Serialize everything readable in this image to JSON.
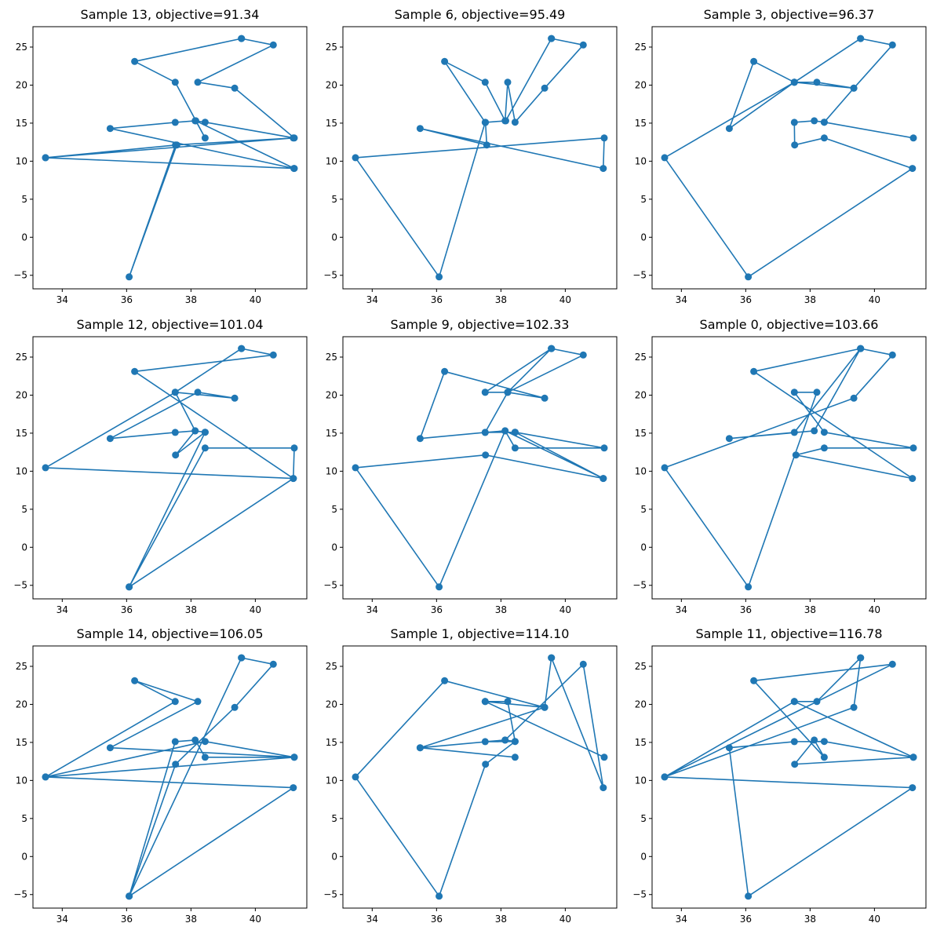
{
  "chart_data": [
    {
      "type": "line",
      "title": "Sample 13, objective=91.34",
      "x": [
        39.57,
        40.56,
        38.21,
        39.36,
        41.21,
        38.44,
        38.13,
        37.51,
        35.49,
        41.2,
        33.48,
        41.18,
        37.52,
        36.08,
        37.56,
        33.48,
        41.21,
        38.15,
        38.44,
        37.51,
        36.25,
        39.57
      ],
      "y": [
        26.12,
        25.28,
        20.38,
        19.6,
        13.05,
        15.12,
        15.31,
        15.1,
        14.3,
        9.05,
        10.46,
        13.05,
        12.13,
        -5.21,
        12.13,
        10.46,
        9.05,
        15.31,
        13.05,
        20.38,
        23.11,
        26.12
      ],
      "xticks": [
        34,
        36,
        38,
        40
      ],
      "yticks": [
        -5,
        0,
        5,
        10,
        15,
        20,
        25
      ],
      "xlim": [
        33.09,
        41.6
      ],
      "ylim": [
        -6.78,
        27.68
      ]
    },
    {
      "type": "line",
      "title": "Sample 6, objective=95.49",
      "x": [
        39.57,
        40.56,
        39.36,
        38.44,
        38.21,
        38.13,
        37.51,
        36.25,
        37.51,
        36.08,
        33.48,
        41.21,
        41.18,
        35.49,
        37.56,
        37.52,
        38.15,
        39.57
      ],
      "y": [
        26.12,
        25.28,
        19.6,
        15.12,
        20.38,
        15.31,
        20.38,
        23.11,
        15.1,
        -5.21,
        10.46,
        13.05,
        9.05,
        14.3,
        12.13,
        15.1,
        15.31,
        26.12
      ],
      "xticks": [
        34,
        36,
        38,
        40
      ],
      "yticks": [
        -5,
        0,
        5,
        10,
        15,
        20,
        25
      ],
      "xlim": [
        33.09,
        41.6
      ],
      "ylim": [
        -6.78,
        27.68
      ]
    },
    {
      "type": "line",
      "title": "Sample 3, objective=96.37",
      "x": [
        39.57,
        40.56,
        39.36,
        38.21,
        37.51,
        33.48,
        36.08,
        41.18,
        38.44,
        37.52,
        37.51,
        38.13,
        38.44,
        41.21,
        38.44,
        39.36,
        37.51,
        36.25,
        35.49,
        37.51,
        39.57
      ],
      "y": [
        26.12,
        25.28,
        19.6,
        20.38,
        20.38,
        10.46,
        -5.21,
        9.05,
        13.05,
        12.13,
        15.1,
        15.31,
        15.12,
        13.05,
        15.12,
        19.6,
        20.38,
        23.11,
        14.3,
        20.38,
        26.12
      ],
      "xticks": [
        34,
        36,
        38,
        40
      ],
      "yticks": [
        -5,
        0,
        5,
        10,
        15,
        20,
        25
      ],
      "xlim": [
        33.09,
        41.6
      ],
      "ylim": [
        -6.78,
        27.68
      ]
    },
    {
      "type": "line",
      "title": "Sample 12, objective=101.04",
      "x": [
        39.57,
        40.56,
        36.25,
        41.18,
        36.08,
        38.44,
        37.52,
        38.13,
        37.51,
        35.49,
        38.21,
        39.36,
        37.51,
        33.48,
        41.18,
        41.21,
        38.44,
        36.08,
        38.44,
        38.13,
        37.51,
        39.57
      ],
      "y": [
        26.12,
        25.28,
        23.11,
        9.05,
        -5.21,
        15.12,
        12.13,
        15.31,
        15.1,
        14.3,
        20.38,
        19.6,
        20.38,
        10.46,
        9.05,
        13.05,
        13.05,
        -5.21,
        15.12,
        15.31,
        20.38,
        26.12
      ],
      "xticks": [
        34,
        36,
        38,
        40
      ],
      "yticks": [
        -5,
        0,
        5,
        10,
        15,
        20,
        25
      ],
      "xlim": [
        33.09,
        41.6
      ],
      "ylim": [
        -6.78,
        27.68
      ]
    },
    {
      "type": "line",
      "title": "Sample 9, objective=102.33",
      "x": [
        39.57,
        38.21,
        37.51,
        39.57,
        37.51,
        38.21,
        39.36,
        36.25,
        35.49,
        37.51,
        38.13,
        41.18,
        38.44,
        41.21,
        38.44,
        38.13,
        36.08,
        33.48,
        37.52,
        41.18,
        38.44,
        37.51,
        38.21,
        40.56,
        39.57
      ],
      "y": [
        26.12,
        20.38,
        20.38,
        26.12,
        20.38,
        20.38,
        19.6,
        23.11,
        14.3,
        15.1,
        15.31,
        9.05,
        15.12,
        13.05,
        13.05,
        15.31,
        -5.21,
        10.46,
        12.13,
        9.05,
        15.12,
        15.1,
        20.38,
        25.28,
        26.12
      ],
      "xticks": [
        34,
        36,
        38,
        40
      ],
      "yticks": [
        -5,
        0,
        5,
        10,
        15,
        20,
        25
      ],
      "xlim": [
        33.09,
        41.6
      ],
      "ylim": [
        -6.78,
        27.68
      ]
    },
    {
      "type": "line",
      "title": "Sample 0, objective=103.66",
      "x": [
        39.57,
        40.56,
        39.36,
        33.48,
        36.08,
        38.21,
        37.51,
        38.44,
        41.21,
        38.44,
        37.56,
        41.18,
        36.25,
        39.57,
        38.13,
        35.49,
        37.51,
        39.57
      ],
      "y": [
        26.12,
        25.28,
        19.6,
        10.46,
        -5.21,
        20.38,
        20.38,
        15.12,
        13.05,
        13.05,
        12.13,
        9.05,
        23.11,
        26.12,
        15.31,
        14.3,
        15.1,
        26.12
      ],
      "xticks": [
        34,
        36,
        38,
        40
      ],
      "yticks": [
        -5,
        0,
        5,
        10,
        15,
        20,
        25
      ],
      "xlim": [
        33.09,
        41.6
      ],
      "ylim": [
        -6.78,
        27.68
      ]
    },
    {
      "type": "line",
      "title": "Sample 14, objective=106.05",
      "x": [
        39.57,
        40.56,
        39.36,
        37.52,
        36.08,
        41.18,
        33.48,
        41.21,
        35.49,
        38.21,
        36.25,
        37.51,
        33.48,
        38.44,
        41.21,
        38.44,
        38.13,
        37.51,
        36.08,
        39.57
      ],
      "y": [
        26.12,
        25.28,
        19.6,
        12.13,
        -5.21,
        9.05,
        10.46,
        13.05,
        14.3,
        20.38,
        23.11,
        20.38,
        10.46,
        15.12,
        13.05,
        13.05,
        15.31,
        15.1,
        -5.21,
        26.12
      ],
      "xticks": [
        34,
        36,
        38,
        40
      ],
      "yticks": [
        -5,
        0,
        5,
        10,
        15,
        20,
        25
      ],
      "xlim": [
        33.09,
        41.6
      ],
      "ylim": [
        -6.78,
        27.68
      ]
    },
    {
      "type": "line",
      "title": "Sample 1, objective=114.10",
      "x": [
        39.57,
        41.18,
        40.56,
        38.13,
        37.51,
        38.44,
        38.21,
        37.51,
        41.21,
        37.51,
        39.36,
        36.25,
        33.48,
        36.08,
        37.52,
        38.44,
        38.13,
        35.49,
        38.44,
        35.49,
        39.36,
        39.57
      ],
      "y": [
        26.12,
        9.05,
        25.28,
        15.31,
        15.1,
        15.12,
        20.38,
        20.38,
        13.05,
        20.38,
        19.6,
        23.11,
        10.46,
        -5.21,
        12.13,
        15.12,
        15.31,
        14.3,
        13.05,
        14.3,
        19.6,
        26.12
      ],
      "xticks": [
        34,
        36,
        38,
        40
      ],
      "yticks": [
        -5,
        0,
        5,
        10,
        15,
        20,
        25
      ],
      "xlim": [
        33.09,
        41.6
      ],
      "ylim": [
        -6.78,
        27.68
      ]
    },
    {
      "type": "line",
      "title": "Sample 11, objective=116.78",
      "x": [
        39.57,
        39.36,
        33.48,
        40.56,
        36.25,
        38.44,
        38.13,
        37.52,
        41.21,
        37.51,
        33.48,
        41.18,
        36.08,
        35.49,
        37.51,
        38.44,
        41.21,
        37.51,
        38.21,
        39.57
      ],
      "y": [
        26.12,
        19.6,
        10.46,
        25.28,
        23.11,
        13.05,
        15.31,
        12.13,
        13.05,
        20.38,
        10.46,
        9.05,
        -5.21,
        14.3,
        15.1,
        15.12,
        13.05,
        20.38,
        20.38,
        26.12
      ],
      "xticks": [
        34,
        36,
        38,
        40
      ],
      "yticks": [
        -5,
        0,
        5,
        10,
        15,
        20,
        25
      ],
      "xlim": [
        33.09,
        41.6
      ],
      "ylim": [
        -6.78,
        27.68
      ]
    }
  ]
}
